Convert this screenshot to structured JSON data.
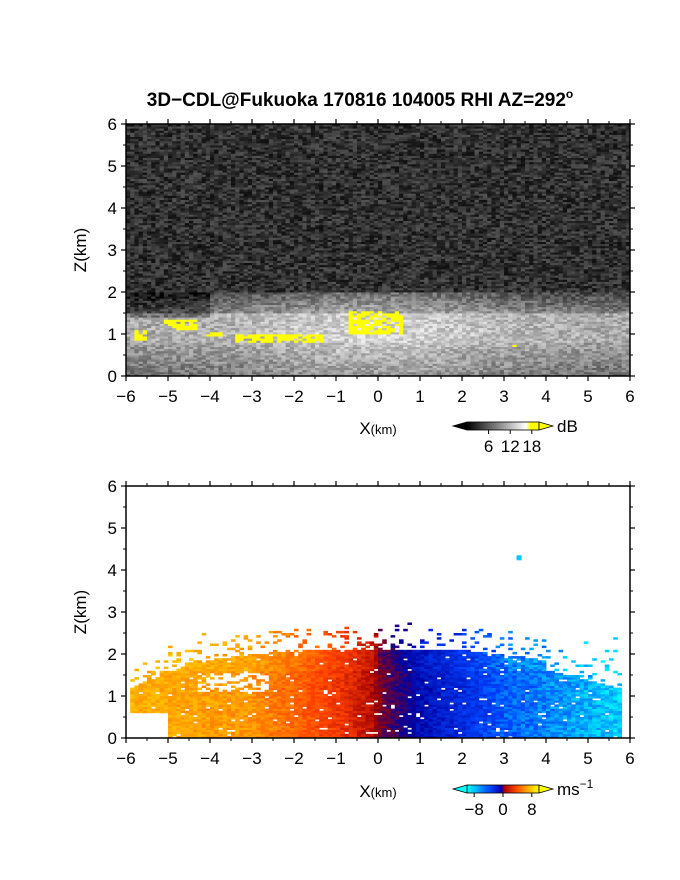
{
  "title": "3D−CDL@Fukuoka 170816 104005 RHI AZ=292",
  "title_superscript": "o",
  "chart_data": [
    {
      "type": "heatmap",
      "name": "reflectivity",
      "xlabel": "X",
      "xlabel_unit": "(km)",
      "ylabel": "Z(km)",
      "xlim": [
        -6,
        6
      ],
      "ylim": [
        0,
        6
      ],
      "x_ticks": [
        -6,
        -5,
        -4,
        -3,
        -2,
        -1,
        0,
        1,
        2,
        3,
        4,
        5,
        6
      ],
      "y_ticks": [
        0,
        1,
        2,
        3,
        4,
        5,
        6
      ],
      "x_tick_labels": [
        "−6",
        "−5",
        "−4",
        "−3",
        "−2",
        "−1",
        "0",
        "1",
        "2",
        "3",
        "4",
        "5",
        "6"
      ],
      "y_tick_labels": [
        "0",
        "1",
        "2",
        "3",
        "4",
        "5",
        "6"
      ],
      "colorbar": {
        "unit": "dB",
        "tick_values": [
          6,
          12,
          18
        ],
        "tick_labels": [
          "6",
          "12",
          "18"
        ],
        "range": [
          0,
          20
        ],
        "colors": [
          "#000000",
          "#ffffff",
          "#ffff00"
        ]
      },
      "features": {
        "background": "noise",
        "layer_top_km": 2.0,
        "layer_base_km": 0.0,
        "bright_layer_km": [
          0.8,
          1.5
        ],
        "yellow_patches": [
          {
            "x": [
              -5.8,
              -5.5
            ],
            "z": [
              0.85,
              1.1
            ]
          },
          {
            "x": [
              -5.1,
              -4.3
            ],
            "z": [
              1.1,
              1.35
            ]
          },
          {
            "x": [
              -4.1,
              -3.7
            ],
            "z": [
              0.95,
              1.05
            ]
          },
          {
            "x": [
              -3.4,
              -1.3
            ],
            "z": [
              0.8,
              1.0
            ]
          },
          {
            "x": [
              -0.7,
              0.6
            ],
            "z": [
              1.0,
              1.55
            ]
          },
          {
            "x": [
              3.1,
              3.3
            ],
            "z": [
              0.68,
              0.76
            ]
          }
        ]
      }
    },
    {
      "type": "heatmap",
      "name": "doppler_velocity",
      "xlabel": "X",
      "xlabel_unit": "(km)",
      "ylabel": "Z(km)",
      "xlim": [
        -6,
        6
      ],
      "ylim": [
        0,
        6
      ],
      "x_ticks": [
        -6,
        -5,
        -4,
        -3,
        -2,
        -1,
        0,
        1,
        2,
        3,
        4,
        5,
        6
      ],
      "y_ticks": [
        0,
        1,
        2,
        3,
        4,
        5,
        6
      ],
      "x_tick_labels": [
        "−6",
        "−5",
        "−4",
        "−3",
        "−2",
        "−1",
        "0",
        "1",
        "2",
        "3",
        "4",
        "5",
        "6"
      ],
      "y_tick_labels": [
        "0",
        "1",
        "2",
        "3",
        "4",
        "5",
        "6"
      ],
      "colorbar": {
        "unit": "ms",
        "unit_superscript": "−1",
        "tick_values": [
          -8,
          0,
          8
        ],
        "tick_labels": [
          "−8",
          "0",
          "8"
        ],
        "range": [
          -10,
          10
        ],
        "colors": [
          "#00ffff",
          "#0044ff",
          "#0000a0",
          "#a00000",
          "#ff4000",
          "#ffaa00",
          "#ffff00"
        ]
      },
      "features": {
        "echo_top_km": 2.1,
        "echo_top_x_km": [
          -5.9,
          5.3
        ],
        "velocity_at_x_km": [
          {
            "x": -5.8,
            "v": 7
          },
          {
            "x": -3,
            "v": 6
          },
          {
            "x": -1,
            "v": 3
          },
          {
            "x": -0.2,
            "v": 1
          },
          {
            "x": 0.1,
            "v": -1
          },
          {
            "x": 1,
            "v": -4
          },
          {
            "x": 3,
            "v": -7
          },
          {
            "x": 5.5,
            "v": -9
          }
        ]
      }
    }
  ]
}
